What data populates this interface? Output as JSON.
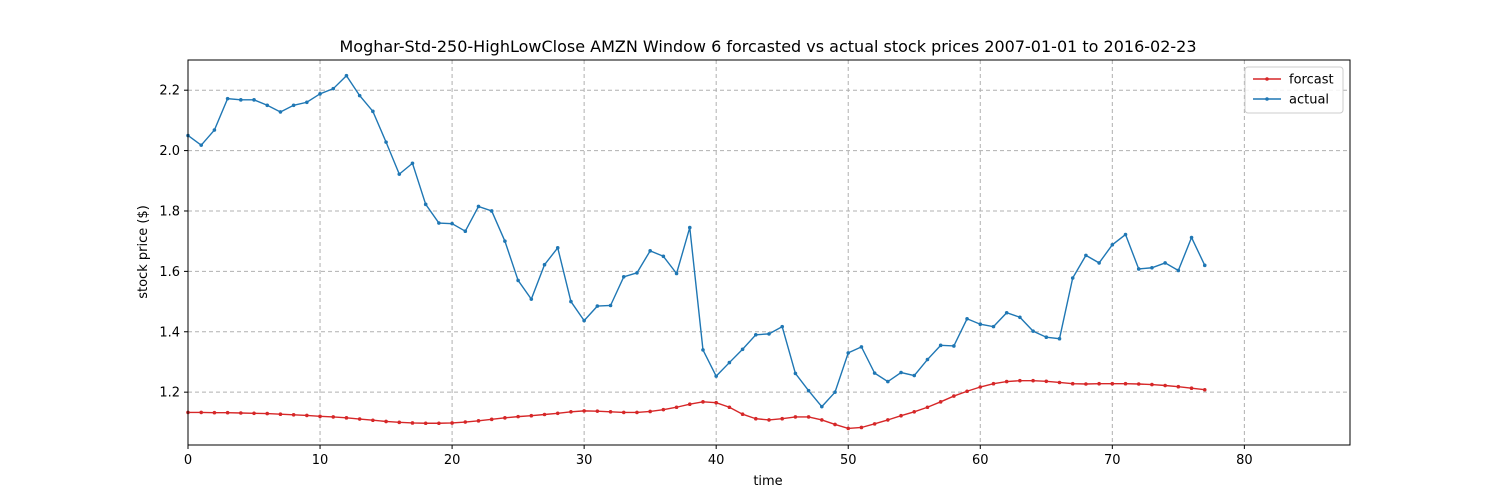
{
  "chart_data": {
    "type": "line",
    "title": "Moghar-Std-250-HighLowClose AMZN Window 6 forcasted vs actual stock prices 2007-01-01 to 2016-02-23",
    "xlabel": "time",
    "ylabel": "stock price ($)",
    "xlim": [
      0,
      88
    ],
    "ylim": [
      1.025,
      2.3
    ],
    "xticks": [
      0,
      10,
      20,
      30,
      40,
      50,
      60,
      70,
      80
    ],
    "yticks": [
      1.2,
      1.4,
      1.6,
      1.8,
      2.0,
      2.2
    ],
    "grid": true,
    "legend_position": "top-right",
    "series": [
      {
        "name": "forcast",
        "color": "#d62728",
        "values": [
          1.133,
          1.133,
          1.132,
          1.132,
          1.131,
          1.13,
          1.129,
          1.127,
          1.125,
          1.123,
          1.12,
          1.118,
          1.115,
          1.111,
          1.107,
          1.103,
          1.1,
          1.098,
          1.097,
          1.097,
          1.098,
          1.101,
          1.105,
          1.11,
          1.115,
          1.119,
          1.122,
          1.126,
          1.13,
          1.135,
          1.138,
          1.137,
          1.135,
          1.133,
          1.133,
          1.136,
          1.142,
          1.15,
          1.16,
          1.168,
          1.165,
          1.15,
          1.127,
          1.112,
          1.108,
          1.112,
          1.118,
          1.118,
          1.108,
          1.093,
          1.08,
          1.083,
          1.095,
          1.108,
          1.122,
          1.135,
          1.15,
          1.168,
          1.187,
          1.203,
          1.217,
          1.228,
          1.235,
          1.238,
          1.238,
          1.236,
          1.232,
          1.228,
          1.227,
          1.228,
          1.228,
          1.228,
          1.227,
          1.225,
          1.222,
          1.218,
          1.213,
          1.208
        ]
      },
      {
        "name": "actual",
        "color": "#1f77b4",
        "values": [
          2.05,
          2.018,
          2.068,
          2.172,
          2.168,
          2.168,
          2.15,
          2.128,
          2.15,
          2.16,
          2.188,
          2.205,
          2.248,
          2.182,
          2.13,
          2.028,
          1.922,
          1.958,
          1.822,
          1.76,
          1.758,
          1.733,
          1.815,
          1.8,
          1.7,
          1.57,
          1.508,
          1.622,
          1.678,
          1.5,
          1.437,
          1.485,
          1.487,
          1.582,
          1.595,
          1.668,
          1.65,
          1.593,
          1.745,
          1.34,
          1.253,
          1.298,
          1.342,
          1.39,
          1.393,
          1.417,
          1.262,
          1.205,
          1.152,
          1.2,
          1.33,
          1.35,
          1.263,
          1.235,
          1.265,
          1.255,
          1.308,
          1.355,
          1.353,
          1.443,
          1.425,
          1.417,
          1.463,
          1.448,
          1.402,
          1.382,
          1.377,
          1.578,
          1.653,
          1.628,
          1.688,
          1.722,
          1.608,
          1.612,
          1.628,
          1.603,
          1.712,
          1.62
        ]
      }
    ]
  }
}
